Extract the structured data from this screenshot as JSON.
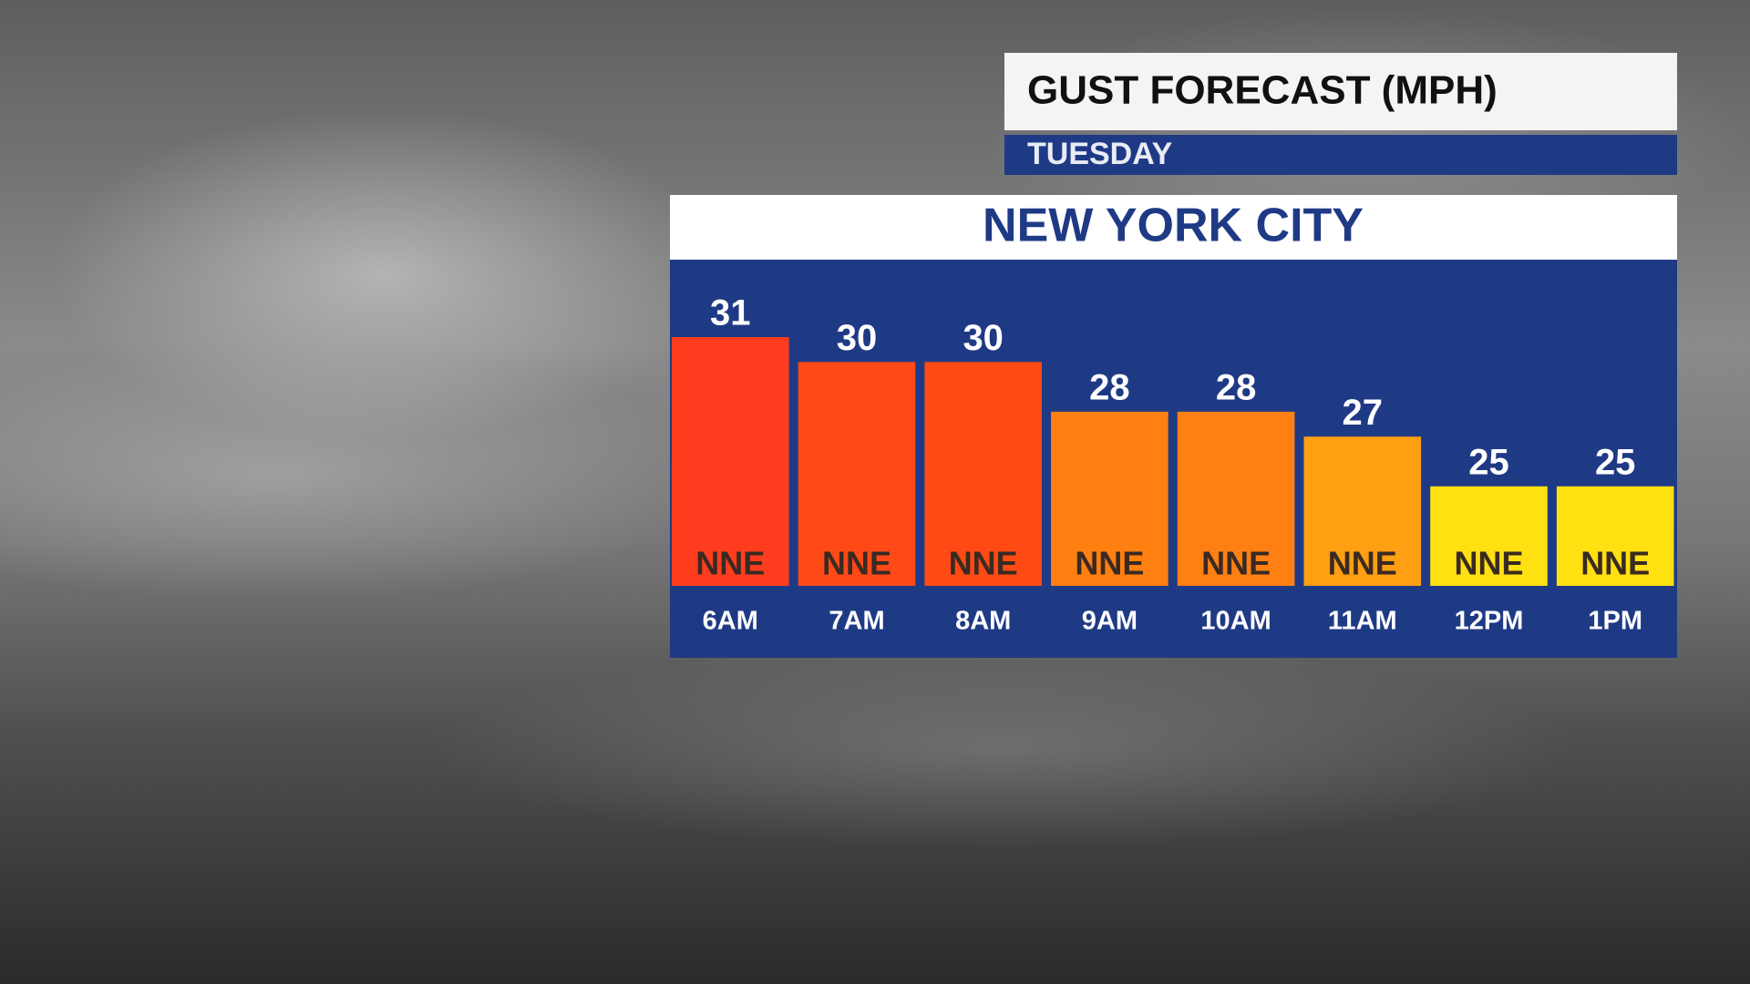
{
  "chart_data": {
    "type": "bar",
    "title": "GUST FORECAST (MPH)",
    "subtitle": "TUESDAY",
    "chart_title": "NEW YORK CITY",
    "categories": [
      "6AM",
      "7AM",
      "8AM",
      "9AM",
      "10AM",
      "11AM",
      "12PM",
      "1PM"
    ],
    "values": [
      31,
      30,
      30,
      28,
      28,
      27,
      25,
      25
    ],
    "directions": [
      "NNE",
      "NNE",
      "NNE",
      "NNE",
      "NNE",
      "NNE",
      "NNE",
      "NNE"
    ],
    "colors": [
      "#ff3d1e",
      "#ff4a18",
      "#ff4a14",
      "#ff8010",
      "#ff8012",
      "#ff9f12",
      "#ffe011",
      "#ffe011"
    ],
    "ylim": [
      21,
      31
    ]
  }
}
